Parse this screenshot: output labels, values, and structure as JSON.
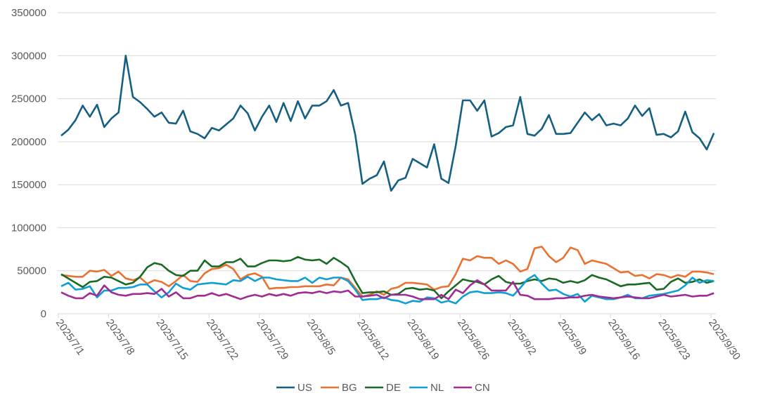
{
  "chart_data": {
    "type": "line",
    "title": "",
    "xlabel": "",
    "ylabel": "",
    "ylim": [
      0,
      350000
    ],
    "y_ticks": [
      "0",
      "50000",
      "100000",
      "150000",
      "200000",
      "250000",
      "300000",
      "350000"
    ],
    "x_ticks": [
      "2025/7/1",
      "2025/7/8",
      "2025/7/15",
      "2025/7/22",
      "2025/7/29",
      "2025/8/5",
      "2025/8/12",
      "2025/8/19",
      "2025/8/26",
      "2025/9/2",
      "2025/9/9",
      "2025/9/16",
      "2025/9/23",
      "2025/9/30"
    ],
    "x_range": [
      "2025/7/1",
      "2025/9/30"
    ],
    "grid": "horizontal",
    "legend": "bottom",
    "series": [
      {
        "name": "US",
        "color": "#156082",
        "values": [
          207000,
          214000,
          225000,
          242000,
          229000,
          243000,
          217000,
          227000,
          234000,
          300000,
          252000,
          246000,
          238000,
          229000,
          234000,
          222000,
          221000,
          236000,
          212000,
          209000,
          204000,
          216000,
          213000,
          220000,
          227000,
          242000,
          233000,
          213000,
          229000,
          242000,
          223000,
          245000,
          224000,
          247000,
          227000,
          242000,
          242000,
          247000,
          260000,
          242000,
          245000,
          208000,
          151000,
          157000,
          161000,
          177000,
          143000,
          155000,
          158000,
          180000,
          175000,
          170000,
          197000,
          157000,
          152000,
          195000,
          248000,
          248000,
          236000,
          248000,
          206000,
          210000,
          217000,
          219000,
          252000,
          209000,
          207000,
          215000,
          231000,
          209000,
          209000,
          210000,
          222000,
          234000,
          225000,
          232000,
          219000,
          221000,
          219000,
          227000,
          242000,
          230000,
          239000,
          208000,
          209000,
          205000,
          212000,
          235000,
          211000,
          204000,
          191000,
          210000
        ]
      },
      {
        "name": "BG",
        "color": "#E97132",
        "values": [
          45000,
          44000,
          43000,
          43000,
          50000,
          49000,
          51000,
          44000,
          49000,
          41000,
          39000,
          42000,
          35000,
          39000,
          37000,
          32000,
          38000,
          45000,
          38000,
          37000,
          47000,
          52000,
          53000,
          57000,
          52000,
          40000,
          45000,
          47000,
          43000,
          29000,
          30000,
          30000,
          31000,
          31000,
          32000,
          32000,
          32000,
          34000,
          33000,
          42000,
          40000,
          30000,
          20000,
          22000,
          26000,
          22000,
          29000,
          31000,
          36000,
          36000,
          35000,
          34000,
          28000,
          31000,
          32000,
          46000,
          64000,
          62000,
          67000,
          65000,
          65000,
          58000,
          62000,
          58000,
          49000,
          52000,
          76000,
          78000,
          67000,
          60000,
          65000,
          77000,
          74000,
          58000,
          62000,
          60000,
          58000,
          53000,
          48000,
          49000,
          44000,
          45000,
          41000,
          46000,
          45000,
          42000,
          45000,
          43000,
          49000,
          49000,
          48000,
          46000
        ]
      },
      {
        "name": "DE",
        "color": "#196B24",
        "values": [
          46000,
          41000,
          36000,
          31000,
          37000,
          38000,
          43000,
          42000,
          38000,
          34000,
          36000,
          43000,
          54000,
          59000,
          57000,
          50000,
          45000,
          44000,
          50000,
          50000,
          62000,
          55000,
          55000,
          60000,
          60000,
          64000,
          55000,
          55000,
          59000,
          62000,
          62000,
          61000,
          62000,
          66000,
          63000,
          62000,
          63000,
          58000,
          65000,
          60000,
          54000,
          38000,
          24000,
          25000,
          25000,
          26000,
          22000,
          23000,
          29000,
          30000,
          28000,
          29000,
          27000,
          18000,
          26000,
          33000,
          40000,
          38000,
          37000,
          34000,
          40000,
          44000,
          37000,
          35000,
          35000,
          38000,
          40000,
          38000,
          41000,
          40000,
          36000,
          38000,
          36000,
          39000,
          45000,
          42000,
          40000,
          36000,
          32000,
          34000,
          34000,
          35000,
          36000,
          28000,
          29000,
          37000,
          41000,
          36000,
          37000,
          40000,
          36000,
          38000
        ]
      },
      {
        "name": "NL",
        "color": "#0F9ED5",
        "values": [
          32000,
          36000,
          28000,
          29000,
          32000,
          19000,
          27000,
          27000,
          30000,
          30000,
          31000,
          34000,
          34000,
          26000,
          19000,
          25000,
          35000,
          30000,
          28000,
          34000,
          35000,
          36000,
          35000,
          34000,
          39000,
          38000,
          43000,
          38000,
          42000,
          42000,
          40000,
          39000,
          38000,
          38000,
          42000,
          36000,
          42000,
          40000,
          42000,
          42000,
          38000,
          28000,
          16000,
          17000,
          17000,
          19000,
          16000,
          15000,
          12000,
          15000,
          14000,
          19000,
          18000,
          13000,
          15000,
          12000,
          20000,
          25000,
          26000,
          24000,
          24000,
          25000,
          24000,
          21000,
          30000,
          40000,
          45000,
          35000,
          27000,
          28000,
          23000,
          20000,
          23000,
          14000,
          21000,
          19000,
          17000,
          17000,
          19000,
          22000,
          18000,
          18000,
          21000,
          22000,
          23000,
          25000,
          27000,
          33000,
          42000,
          36000,
          39000,
          38000
        ]
      },
      {
        "name": "CN",
        "color": "#A02B93",
        "values": [
          25000,
          21000,
          18000,
          18000,
          24000,
          21000,
          33000,
          25000,
          22000,
          21000,
          23000,
          23000,
          24000,
          23000,
          29000,
          20000,
          25000,
          18000,
          18000,
          21000,
          21000,
          24000,
          21000,
          23000,
          20000,
          17000,
          20000,
          22000,
          20000,
          23000,
          21000,
          23000,
          21000,
          24000,
          25000,
          24000,
          26000,
          24000,
          26000,
          25000,
          27000,
          20000,
          20000,
          21000,
          22000,
          18000,
          22000,
          22000,
          22000,
          20000,
          17000,
          17000,
          17000,
          22000,
          17000,
          28000,
          24000,
          33000,
          39000,
          34000,
          27000,
          27000,
          27000,
          37000,
          22000,
          21000,
          17000,
          17000,
          17000,
          18000,
          18000,
          19000,
          19000,
          21000,
          22000,
          20000,
          19000,
          18000,
          19000,
          20000,
          19000,
          18000,
          18000,
          20000,
          22000,
          20000,
          21000,
          22000,
          20000,
          21000,
          21000,
          24000
        ]
      }
    ]
  }
}
